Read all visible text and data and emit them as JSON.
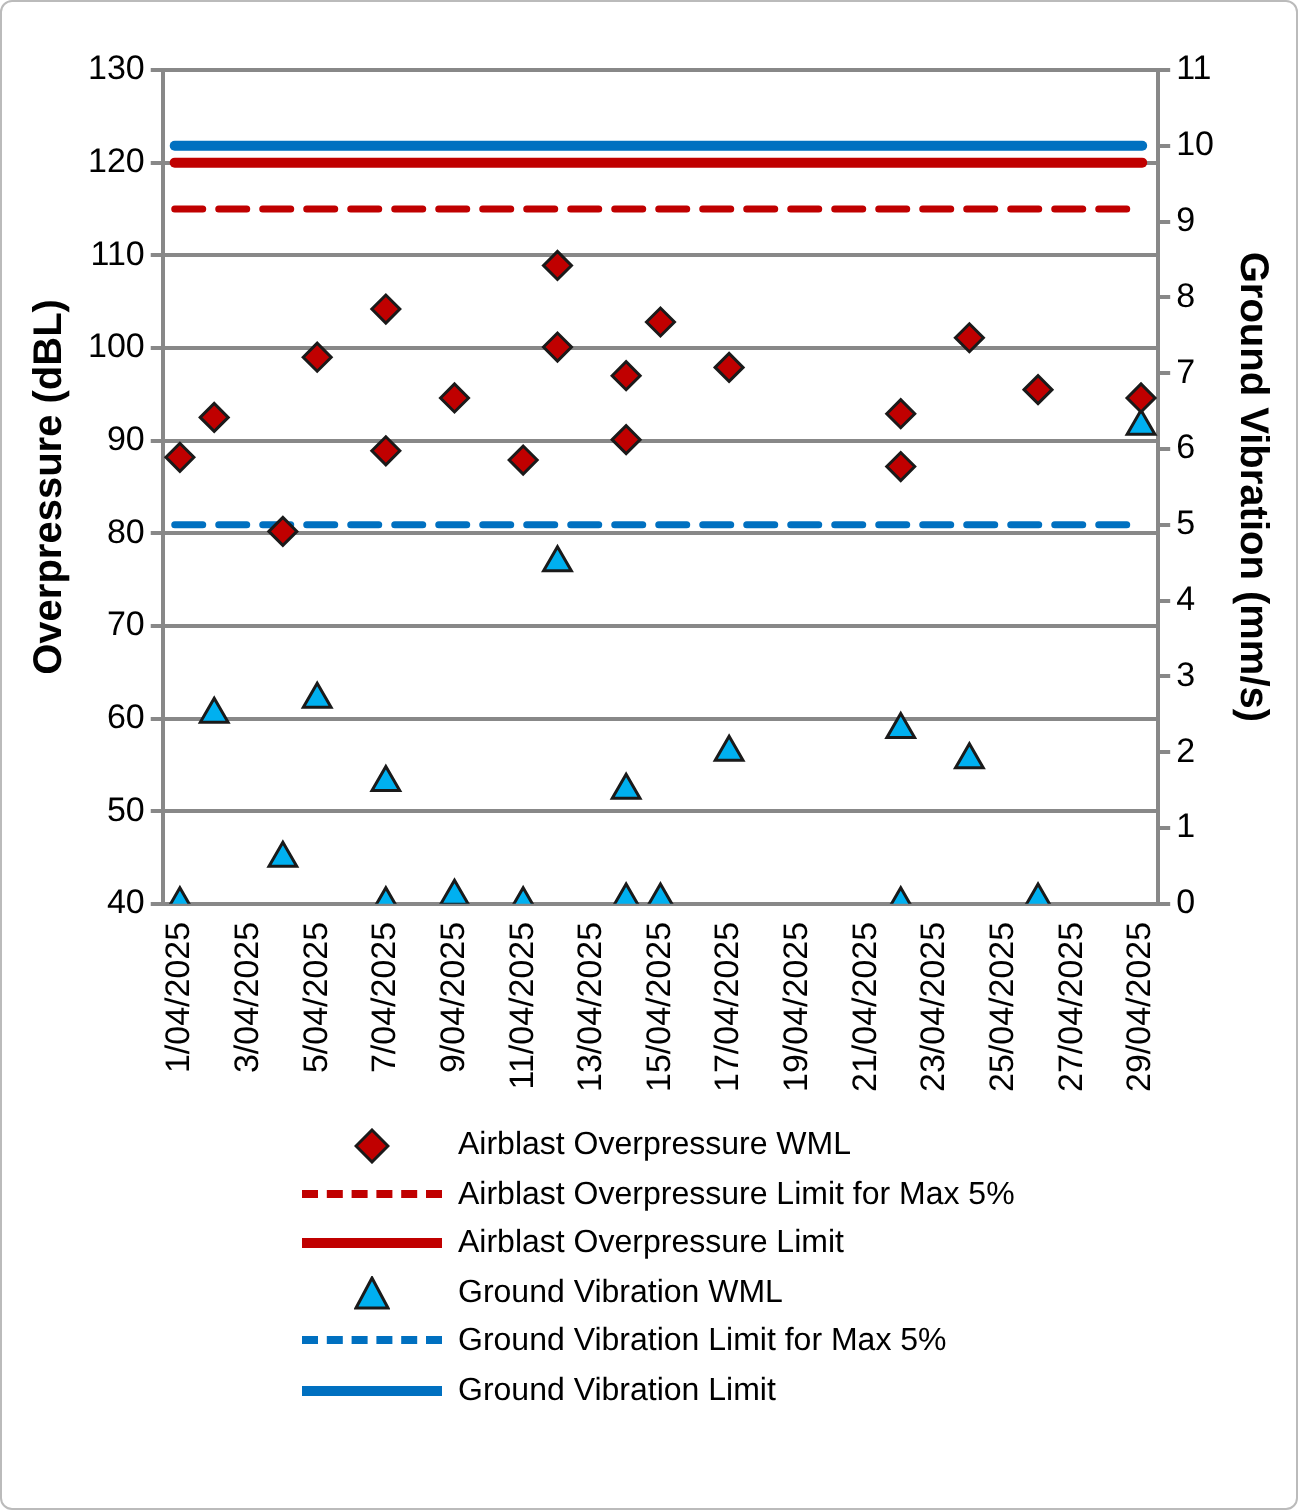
{
  "chart_data": {
    "type": "scatter",
    "ylabel": "Overpressure (dBL)",
    "y2label": "Ground Vibration (mm/s)",
    "xlim": [
      "2025-03-31T12:00",
      "2025-04-29T12:00"
    ],
    "xticks": [
      {
        "value": "2025-04-01",
        "label": "1/04/2025"
      },
      {
        "value": "2025-04-03",
        "label": "3/04/2025"
      },
      {
        "value": "2025-04-05",
        "label": "5/04/2025"
      },
      {
        "value": "2025-04-07",
        "label": "7/04/2025"
      },
      {
        "value": "2025-04-09",
        "label": "9/04/2025"
      },
      {
        "value": "2025-04-11",
        "label": "11/04/2025"
      },
      {
        "value": "2025-04-13",
        "label": "13/04/2025"
      },
      {
        "value": "2025-04-15",
        "label": "15/04/2025"
      },
      {
        "value": "2025-04-17",
        "label": "17/04/2025"
      },
      {
        "value": "2025-04-19",
        "label": "19/04/2025"
      },
      {
        "value": "2025-04-21",
        "label": "21/04/2025"
      },
      {
        "value": "2025-04-23",
        "label": "23/04/2025"
      },
      {
        "value": "2025-04-25",
        "label": "25/04/2025"
      },
      {
        "value": "2025-04-27",
        "label": "27/04/2025"
      },
      {
        "value": "2025-04-29",
        "label": "29/04/2025"
      }
    ],
    "ylim": [
      40,
      130
    ],
    "yticks": [
      40,
      50,
      60,
      70,
      80,
      90,
      100,
      110,
      120,
      130
    ],
    "y2lim": [
      0,
      11
    ],
    "y2ticks": [
      0,
      1,
      2,
      3,
      4,
      5,
      6,
      7,
      8,
      9,
      10,
      11
    ],
    "grid": "y",
    "legend": "bottom",
    "series": [
      {
        "name": "Airblast Overpressure WML",
        "color": "#c00000",
        "marker": "diamond",
        "x": [
          "2025-04-01",
          "2025-04-02",
          "2025-04-04",
          "2025-04-05",
          "2025-04-07",
          "2025-04-07",
          "2025-04-09",
          "2025-04-11",
          "2025-04-12",
          "2025-04-12",
          "2025-04-14",
          "2025-04-14",
          "2025-04-15",
          "2025-04-17",
          "2025-04-22",
          "2025-04-22",
          "2025-04-24",
          "2025-04-26",
          "2025-04-29"
        ],
        "values": [
          88.2,
          92.5,
          80.2,
          99.0,
          104.2,
          88.9,
          94.6,
          87.9,
          108.9,
          100.1,
          97.0,
          90.1,
          102.8,
          97.9,
          92.9,
          87.2,
          101.1,
          95.5,
          94.6
        ]
      },
      {
        "name": "Ground Vibration WML",
        "color": "#00b0f0",
        "marker": "triangle",
        "axis": "y2",
        "x": [
          "2025-04-01",
          "2025-04-02",
          "2025-04-04",
          "2025-04-05",
          "2025-04-07",
          "2025-04-07",
          "2025-04-09",
          "2025-04-11",
          "2025-04-12",
          "2025-04-14",
          "2025-04-14",
          "2025-04-15",
          "2025-04-17",
          "2025-04-22",
          "2025-04-22",
          "2025-04-24",
          "2025-04-26",
          "2025-04-29"
        ],
        "values": [
          0.0,
          2.5,
          0.6,
          2.7,
          1.6,
          0.0,
          0.1,
          0.0,
          4.5,
          1.5,
          0.05,
          0.05,
          2.0,
          2.3,
          0.0,
          1.9,
          0.05,
          6.3
        ]
      }
    ],
    "ref_lines": [
      {
        "axis": "y",
        "value": 115,
        "label": "Airblast Overpressure Limit for Max 5%",
        "color": "#c00000",
        "line_style": "dashed"
      },
      {
        "axis": "y",
        "value": 120,
        "label": "Airblast Overpressure Limit",
        "color": "#c00000",
        "line_style": "solid"
      },
      {
        "axis": "y2",
        "value": 5,
        "label": "Ground Vibration Limit for Max 5%",
        "color": "#0070c0",
        "line_style": "dashed"
      },
      {
        "axis": "y2",
        "value": 10,
        "label": "Ground Vibration Limit",
        "color": "#0070c0",
        "line_style": "solid"
      }
    ]
  }
}
